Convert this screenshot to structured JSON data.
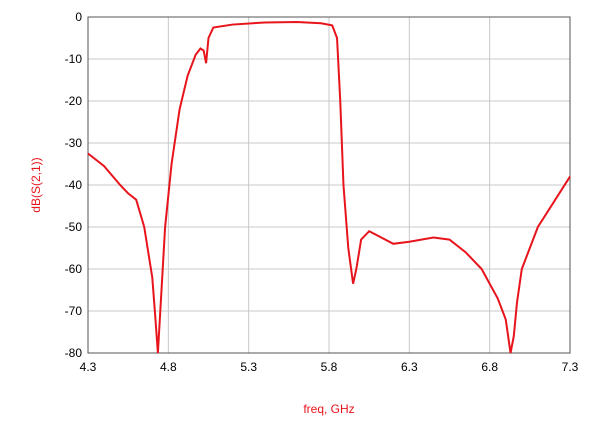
{
  "chart_data": {
    "type": "line",
    "x_label": "freq, GHz",
    "y_label": "dB(S(2,1))",
    "x": [
      4.3,
      4.4,
      4.5,
      4.55,
      4.6,
      4.65,
      4.7,
      4.72,
      4.735,
      4.75,
      4.78,
      4.82,
      4.87,
      4.92,
      4.97,
      5.0,
      5.02,
      5.035,
      5.05,
      5.08,
      5.2,
      5.4,
      5.6,
      5.75,
      5.82,
      5.85,
      5.87,
      5.89,
      5.92,
      5.95,
      5.97,
      6.0,
      6.05,
      6.1,
      6.2,
      6.3,
      6.45,
      6.55,
      6.65,
      6.75,
      6.85,
      6.9,
      6.93,
      6.95,
      6.97,
      7.0,
      7.1,
      7.2,
      7.3
    ],
    "series": [
      {
        "color": "#e8141c",
        "values": [
          -32.5,
          -35.5,
          -40,
          -42,
          -43.5,
          -50,
          -62,
          -72,
          -80,
          -70,
          -50,
          -35,
          -22,
          -14,
          -9,
          -7.5,
          -8,
          -11,
          -5,
          -2.5,
          -1.8,
          -1.3,
          -1.2,
          -1.5,
          -2,
          -5,
          -20,
          -40,
          -55,
          -63.5,
          -60,
          -53,
          -51,
          -52,
          -54,
          -53.5,
          -52.5,
          -53,
          -56,
          -60,
          -67,
          -72,
          -80,
          -76,
          -68,
          -60,
          -50,
          -44,
          -38
        ]
      }
    ],
    "xlim": [
      4.3,
      7.3
    ],
    "xticks": [
      4.3,
      4.8,
      5.3,
      5.8,
      6.3,
      6.8,
      7.3
    ],
    "ylim": [
      -80,
      0
    ],
    "yticks": [
      0,
      -10,
      -20,
      -30,
      -40,
      -50,
      -60,
      -70,
      -80
    ],
    "grid": true
  }
}
